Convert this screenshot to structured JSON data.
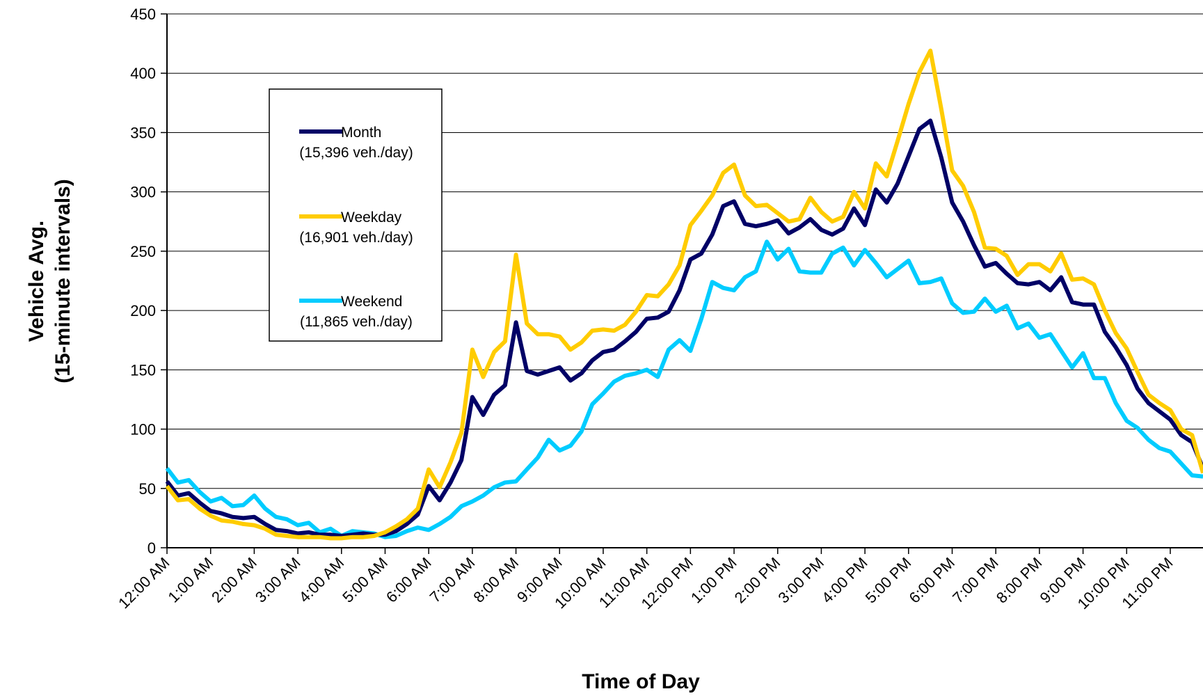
{
  "chart_data": {
    "type": "line",
    "title": "",
    "xlabel": "Time of Day",
    "ylabel_line1": "Vehicle Avg.",
    "ylabel_line2": "(15-minute intervals)",
    "ylim": [
      0,
      450
    ],
    "yticks": [
      0,
      50,
      100,
      150,
      200,
      250,
      300,
      350,
      400,
      450
    ],
    "grid": true,
    "legend_position": "upper-left inside plot",
    "x_tick_labels": [
      "12:00 AM",
      "1:00 AM",
      "2:00 AM",
      "3:00 AM",
      "4:00 AM",
      "5:00 AM",
      "6:00 AM",
      "7:00 AM",
      "8:00 AM",
      "9:00 AM",
      "10:00 AM",
      "11:00 AM",
      "12:00 PM",
      "1:00 PM",
      "2:00 PM",
      "3:00 PM",
      "4:00 PM",
      "5:00 PM",
      "6:00 PM",
      "7:00 PM",
      "8:00 PM",
      "9:00 PM",
      "10:00 PM",
      "11:00 PM"
    ],
    "x_interval_minutes": 15,
    "series": [
      {
        "name": "Month",
        "legend_sub": "(15,396 veh./day)",
        "color": "#000066",
        "values": [
          56,
          44,
          46,
          38,
          31,
          29,
          26,
          25,
          26,
          20,
          15,
          14,
          12,
          13,
          11,
          11,
          10,
          11,
          12,
          11,
          11,
          14,
          20,
          28,
          52,
          40,
          55,
          74,
          127,
          112,
          129,
          137,
          190,
          149,
          146,
          149,
          152,
          141,
          147,
          158,
          165,
          167,
          174,
          182,
          193,
          194,
          199,
          217,
          243,
          248,
          264,
          288,
          292,
          273,
          271,
          273,
          276,
          265,
          270,
          277,
          268,
          264,
          269,
          286,
          272,
          302,
          291,
          307,
          330,
          353,
          360,
          329,
          291,
          275,
          255,
          237,
          240,
          231,
          223,
          222,
          224,
          217,
          228,
          207,
          205,
          205,
          182,
          169,
          154,
          134,
          122,
          115,
          108,
          95,
          89,
          67
        ]
      },
      {
        "name": "Weekday",
        "legend_sub": "(16,901 veh./day)",
        "color": "#FFCC00",
        "values": [
          52,
          40,
          41,
          33,
          27,
          23,
          22,
          20,
          19,
          16,
          11,
          10,
          9,
          9,
          9,
          8,
          8,
          9,
          9,
          10,
          13,
          18,
          24,
          33,
          66,
          51,
          72,
          97,
          167,
          144,
          165,
          174,
          247,
          189,
          180,
          180,
          178,
          167,
          173,
          183,
          184,
          183,
          188,
          199,
          213,
          212,
          222,
          238,
          272,
          284,
          297,
          316,
          323,
          297,
          288,
          289,
          282,
          275,
          277,
          295,
          283,
          275,
          279,
          300,
          286,
          324,
          313,
          343,
          374,
          401,
          419,
          370,
          318,
          305,
          283,
          253,
          252,
          246,
          230,
          239,
          239,
          233,
          248,
          226,
          227,
          222,
          200,
          181,
          168,
          148,
          129,
          122,
          116,
          100,
          95,
          63
        ]
      },
      {
        "name": "Weekend",
        "legend_sub": "(11,865 veh./day)",
        "color": "#00CCFF",
        "values": [
          67,
          55,
          57,
          47,
          39,
          42,
          35,
          36,
          44,
          33,
          26,
          24,
          19,
          21,
          13,
          16,
          10,
          14,
          13,
          12,
          9,
          10,
          14,
          17,
          15,
          20,
          26,
          35,
          39,
          44,
          51,
          55,
          56,
          66,
          76,
          91,
          82,
          86,
          98,
          121,
          130,
          140,
          145,
          147,
          150,
          144,
          167,
          175,
          166,
          193,
          224,
          219,
          217,
          228,
          233,
          258,
          243,
          252,
          233,
          232,
          232,
          248,
          253,
          238,
          251,
          240,
          228,
          235,
          242,
          223,
          224,
          227,
          206,
          198,
          199,
          210,
          199,
          204,
          185,
          189,
          177,
          180,
          166,
          152,
          164,
          143,
          143,
          122,
          107,
          101,
          91,
          84,
          81,
          71,
          61,
          60
        ]
      }
    ]
  }
}
